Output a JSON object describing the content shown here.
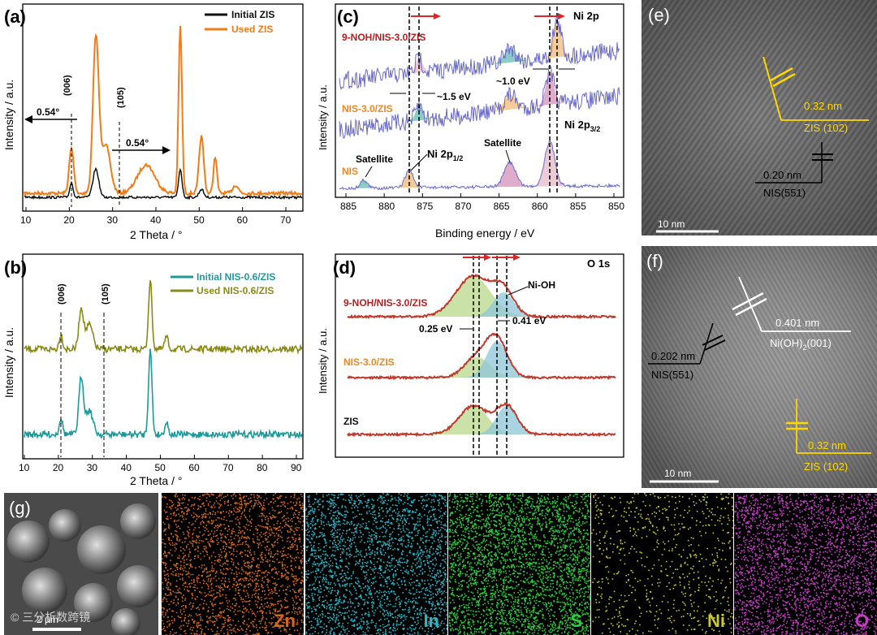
{
  "panels": {
    "a": {
      "label": "(a)",
      "legend": [
        "Initial ZIS",
        "Used ZIS"
      ],
      "ylabel": "Intensity / a.u.",
      "xlabel": "2 Theta / °",
      "xticks": [
        "10",
        "20",
        "30",
        "40",
        "50",
        "60",
        "70"
      ],
      "peaks": [
        "(006)",
        "(105)"
      ],
      "shift_left": "0.54°",
      "shift_right": "0.54°"
    },
    "b": {
      "label": "(b)",
      "legend": [
        "Initial NIS-0.6/ZIS",
        "Used NIS-0.6/ZIS"
      ],
      "ylabel": "Intensity / a.u.",
      "xlabel": "2 Theta / °",
      "xticks": [
        "10",
        "20",
        "30",
        "40",
        "50",
        "60",
        "70",
        "80",
        "90"
      ],
      "peaks": [
        "(006)",
        "(105)"
      ]
    },
    "c": {
      "label": "(c)",
      "title": "Ni 2p",
      "samples": [
        "9-NOH/NIS-3.0/ZIS",
        "NIS-3.0/ZIS",
        "NIS"
      ],
      "annotations": [
        "~1.5 eV",
        "~1.0 eV",
        "Satellite",
        "Satellite"
      ],
      "ni2p12_main": "Ni 2p",
      "ni2p12_sub": "1/2",
      "ni2p32_main": "Ni 2p",
      "ni2p32_sub": "3/2",
      "ylabel": "Intensity / a.u.",
      "xlabel": "Binding energy / eV",
      "xticks": [
        "885",
        "880",
        "875",
        "870",
        "865",
        "860",
        "855",
        "850"
      ]
    },
    "d": {
      "label": "(d)",
      "title": "O 1s",
      "samples": [
        "9-NOH/NIS-3.0/ZIS",
        "NIS-3.0/ZIS",
        "ZIS"
      ],
      "annotations": [
        "Ni-OH",
        "0.25 eV",
        "0.41 eV"
      ],
      "ylabel": "Intensity / a.u."
    },
    "e": {
      "label": "(e)",
      "d1": "0.32 nm",
      "plane1": "ZIS (102)",
      "d2": "0.20 nm",
      "plane2": "NIS(551)",
      "scale": "10 nm"
    },
    "f": {
      "label": "(f)",
      "d1": "0.401 nm",
      "plane1_main": "Ni(OH)",
      "plane1_sub": "2",
      "plane1_tail": "(001)",
      "d2": "0.202 nm",
      "plane2": "NIS(551)",
      "d3": "0.32 nm",
      "plane3": "ZIS (102)",
      "scale": "10 nm"
    },
    "g": {
      "label": "(g)",
      "maps": [
        "Zn",
        "In",
        "S",
        "Ni",
        "O"
      ],
      "scale_text": "2 µm",
      "watermark": "© 三分析数跨镜"
    }
  },
  "colors": {
    "initial_zis": "#111111",
    "used_zis": "#f07c1a",
    "initial_nis": "#1e9a9a",
    "used_nis": "#8a8a17",
    "sample_red": "#b22222",
    "sample_orange": "#e8892a",
    "fit_red": "#c0392b",
    "zn": "#d2691e",
    "in": "#2bb5c2",
    "s": "#2ecc40",
    "ni": "#c8c832",
    "o": "#c040c0"
  }
}
